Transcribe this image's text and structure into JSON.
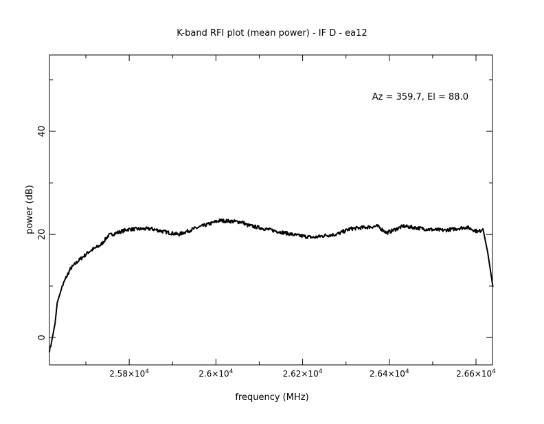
{
  "chart_data": {
    "type": "line",
    "title": "K-band RFI plot (mean power) - IF D - ea12",
    "xlabel": "frequency (MHz)",
    "ylabel": "power (dB)",
    "annotation": "Az = 359.7, El = 88.0",
    "xlim": [
      25616,
      26638
    ],
    "ylim": [
      -5.3,
      54.8
    ],
    "grid": false,
    "line_color": "#000000",
    "x_ticks": [
      25800,
      26000,
      26200,
      26400,
      26600
    ],
    "x_tick_labels": [
      {
        "mant": "2.58",
        "exp": "4"
      },
      {
        "mant": "2.6",
        "exp": "4"
      },
      {
        "mant": "2.62",
        "exp": "4"
      },
      {
        "mant": "2.64",
        "exp": "4"
      },
      {
        "mant": "2.66",
        "exp": "4"
      }
    ],
    "x_minor_step": 100,
    "y_ticks": [
      0,
      20,
      40
    ],
    "y_tick_labels": [
      "0",
      "20",
      "40"
    ],
    "y_minor_step": 10,
    "series": [
      {
        "x": [
          25616,
          25621,
          25629,
          25634,
          25645,
          25653,
          25665,
          25684,
          25708,
          25735,
          25752,
          25798,
          25851,
          25882,
          25914,
          25950,
          26009,
          26061,
          26072,
          26136,
          26188,
          26226,
          26251,
          26278,
          26310,
          26373,
          26394,
          26432,
          26489,
          26527,
          26579,
          26606,
          26616,
          26627,
          26639
        ],
        "y": [
          -2.5,
          -0.8,
          2.8,
          6.8,
          9.8,
          11.4,
          13.4,
          15.0,
          16.7,
          18.0,
          19.8,
          21.0,
          21.1,
          20.5,
          20.0,
          21.1,
          22.7,
          22.4,
          21.8,
          20.7,
          19.8,
          19.4,
          19.8,
          20.0,
          21.1,
          21.6,
          20.3,
          21.6,
          21.0,
          20.8,
          21.4,
          20.5,
          21.1,
          16.5,
          9.8
        ]
      }
    ]
  }
}
